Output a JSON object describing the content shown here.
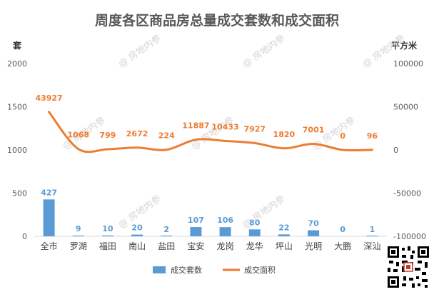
{
  "chart_data": {
    "type": "bar-line-combo",
    "title": "周度各区商品房总量成交套数和成交面积",
    "categories": [
      "全市",
      "罗湖",
      "福田",
      "南山",
      "盐田",
      "宝安",
      "龙岗",
      "龙华",
      "坪山",
      "光明",
      "大鹏",
      "深汕"
    ],
    "left_axis": {
      "unit": "套",
      "ylim": [
        0,
        2000
      ],
      "ticks": [
        0,
        500,
        1000,
        1500,
        2000
      ]
    },
    "right_axis": {
      "unit": "平方米",
      "ylim": [
        -100000,
        100000
      ],
      "ticks": [
        -100000,
        -50000,
        0,
        50000,
        100000
      ]
    },
    "series": [
      {
        "name": "成交套数",
        "type": "bar",
        "axis": "left",
        "color": "#5B9BD5",
        "values": [
          427,
          9,
          10,
          20,
          2,
          107,
          106,
          80,
          22,
          70,
          0,
          1
        ]
      },
      {
        "name": "成交面积",
        "type": "line",
        "axis": "right",
        "color": "#ED7D31",
        "values": [
          43927,
          1068,
          799,
          2672,
          224,
          11887,
          10433,
          7927,
          1820,
          7001,
          0,
          96
        ]
      }
    ],
    "legend_position": "bottom",
    "grid": false
  },
  "watermark_text": "房地内参"
}
